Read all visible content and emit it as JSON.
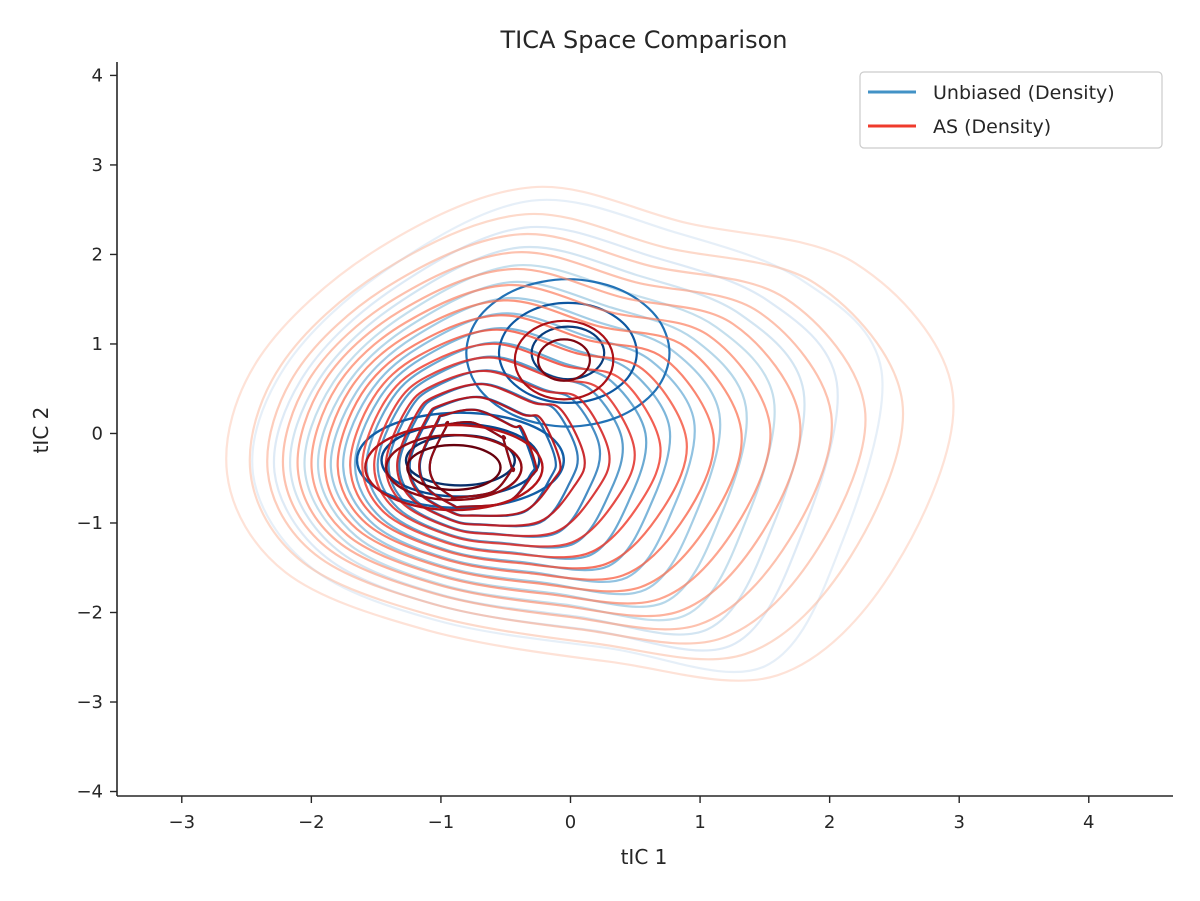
{
  "chart_data": {
    "type": "contour",
    "title": "TICA Space Comparison",
    "xlabel": "tIC 1",
    "ylabel": "tIC 2",
    "xlim": [
      -3.5,
      4.65
    ],
    "ylim": [
      -4.05,
      4.15
    ],
    "x_ticks": [
      -3,
      -2,
      -1,
      0,
      1,
      2,
      3,
      4
    ],
    "y_ticks": [
      -4,
      -3,
      -2,
      -1,
      0,
      1,
      2,
      3,
      4
    ],
    "x_tick_labels": [
      "−3",
      "−2",
      "−1",
      "0",
      "1",
      "2",
      "3",
      "4"
    ],
    "y_tick_labels": [
      "−4",
      "−3",
      "−2",
      "−1",
      "0",
      "1",
      "2",
      "3",
      "4"
    ],
    "grid": false,
    "legend_position": "top-right",
    "series": [
      {
        "name": "Unbiased (Density)",
        "kind": "kde-density",
        "legend_color": "#4292c6",
        "colormap": "Blues",
        "modes": [
          {
            "x": -0.85,
            "y": -0.35,
            "weight": 0.55
          },
          {
            "x": -0.05,
            "y": 0.95,
            "weight": 0.35
          },
          {
            "x": 1.15,
            "y": -1.0,
            "weight": 0.1
          }
        ]
      },
      {
        "name": "AS (Density)",
        "kind": "kde-density",
        "legend_color": "#ef3b2c",
        "colormap": "Reds",
        "modes": [
          {
            "x": -0.9,
            "y": -0.4,
            "weight": 0.5
          },
          {
            "x": -0.05,
            "y": 0.9,
            "weight": 0.3
          },
          {
            "x": 1.0,
            "y": -0.9,
            "weight": 0.2
          }
        ]
      }
    ]
  }
}
